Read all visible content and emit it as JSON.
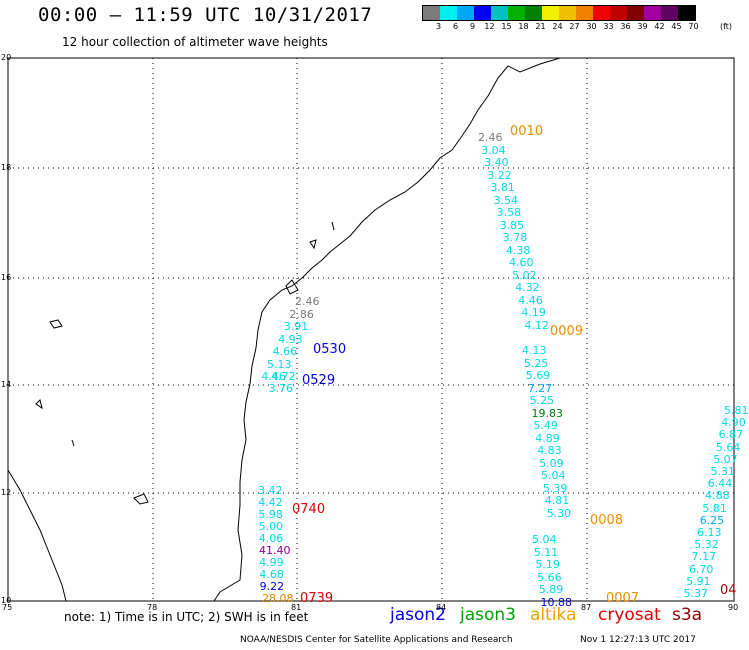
{
  "header": {
    "title": "00:00 – 11:59 UTC 10/31/2017",
    "subtitle": "12 hour collection of altimeter wave heights"
  },
  "color_scale": {
    "labels": [
      "3",
      "6",
      "9",
      "12",
      "15",
      "18",
      "21",
      "24",
      "27",
      "30",
      "33",
      "36",
      "39",
      "42",
      "45",
      "70"
    ],
    "colors": [
      "#7a7a7a",
      "#00f0f0",
      "#00a8f8",
      "#0000f0",
      "#00c0c0",
      "#00b000",
      "#008000",
      "#f0f000",
      "#f0c000",
      "#f08000",
      "#f00000",
      "#c00000",
      "#800000",
      "#a000a0",
      "#600060",
      "#000000"
    ],
    "unit": "(ft)"
  },
  "axes": {
    "x_ticks": [
      "75",
      "78",
      "81",
      "84",
      "87",
      "90"
    ],
    "y_ticks": [
      "20",
      "18",
      "16",
      "14",
      "12",
      "10"
    ]
  },
  "tracks": [
    {
      "id": "altika-0010",
      "label": "0010",
      "label_color": "#f08c00",
      "points": [
        {
          "v": "2.46",
          "c": "#7a7a7a"
        },
        {
          "v": "3.04",
          "c": "#00d8e8"
        },
        {
          "v": "3.40",
          "c": "#00d8e8"
        },
        {
          "v": "3.22",
          "c": "#00d8e8"
        },
        {
          "v": "3.81",
          "c": "#00d8e8"
        },
        {
          "v": "3.54",
          "c": "#00d8e8"
        },
        {
          "v": "3.58",
          "c": "#00d8e8"
        },
        {
          "v": "3.85",
          "c": "#00d8e8"
        },
        {
          "v": "3.78",
          "c": "#00d8e8"
        },
        {
          "v": "4.38",
          "c": "#00d8e8"
        },
        {
          "v": "4.60",
          "c": "#00d8e8"
        },
        {
          "v": "5.02",
          "c": "#00d8e8"
        },
        {
          "v": "4.32",
          "c": "#00d8e8"
        },
        {
          "v": "4.46",
          "c": "#00d8e8"
        },
        {
          "v": "4.19",
          "c": "#00d8e8"
        },
        {
          "v": "4.12",
          "c": "#00d8e8"
        }
      ]
    },
    {
      "id": "altika-0009",
      "label": "0009",
      "label_color": "#f08c00",
      "points": [
        {
          "v": "4.13",
          "c": "#00d8e8"
        },
        {
          "v": "5.25",
          "c": "#00d8e8"
        },
        {
          "v": "5.69",
          "c": "#00d8e8"
        },
        {
          "v": "7.27",
          "c": "#00a8f8"
        },
        {
          "v": "5.25",
          "c": "#00d8e8"
        },
        {
          "v": "19.83",
          "c": "#007800"
        },
        {
          "v": "5.49",
          "c": "#00d8e8"
        },
        {
          "v": "4.89",
          "c": "#00d8e8"
        },
        {
          "v": "4.83",
          "c": "#00d8e8"
        },
        {
          "v": "5.09",
          "c": "#00d8e8"
        },
        {
          "v": "5.04",
          "c": "#00d8e8"
        },
        {
          "v": "5.39",
          "c": "#00d8e8"
        },
        {
          "v": "4.81",
          "c": "#00d8e8"
        },
        {
          "v": "5.30",
          "c": "#00d8e8"
        }
      ]
    },
    {
      "id": "altika-0008",
      "label": "0008",
      "label_color": "#f08c00",
      "points": [
        {
          "v": "5.04",
          "c": "#00d8e8"
        },
        {
          "v": "5.11",
          "c": "#00d8e8"
        },
        {
          "v": "5.19",
          "c": "#00d8e8"
        },
        {
          "v": "5.66",
          "c": "#00d8e8"
        },
        {
          "v": "5.89",
          "c": "#00d8e8"
        },
        {
          "v": "10.88",
          "c": "#0000e0"
        }
      ]
    },
    {
      "id": "altika-0007",
      "label": "0007",
      "label_color": "#f08c00",
      "points": []
    },
    {
      "id": "jason2-0530",
      "label": "0530",
      "label_color": "#0000e0",
      "points": [
        {
          "v": "2.46",
          "c": "#7a7a7a"
        },
        {
          "v": "2.86",
          "c": "#7a7a7a"
        },
        {
          "v": "3.91",
          "c": "#00d8e8"
        },
        {
          "v": "4.93",
          "c": "#00d8e8"
        },
        {
          "v": "4.66",
          "c": "#00d8e8"
        },
        {
          "v": "5.13",
          "c": "#00d8e8"
        },
        {
          "v": "4.46",
          "c": "#00d8e8"
        }
      ]
    },
    {
      "id": "jason2-0529",
      "label": "0529",
      "label_color": "#0000e0",
      "points": [
        {
          "v": "4.72",
          "c": "#00d8e8"
        },
        {
          "v": "3.76",
          "c": "#00d8e8"
        }
      ]
    },
    {
      "id": "cryosat-0740",
      "label": "0740",
      "label_color": "#e00000",
      "points": [
        {
          "v": "3.42",
          "c": "#00d8e8"
        },
        {
          "v": "4.42",
          "c": "#00d8e8"
        },
        {
          "v": "5.98",
          "c": "#00d8e8"
        },
        {
          "v": "5.00",
          "c": "#00d8e8"
        },
        {
          "v": "4.06",
          "c": "#00d8e8"
        },
        {
          "v": "41.40",
          "c": "#900090"
        },
        {
          "v": "4.99",
          "c": "#00d8e8"
        },
        {
          "v": "4.68",
          "c": "#00d8e8"
        },
        {
          "v": "9.22",
          "c": "#0000e0"
        }
      ]
    },
    {
      "id": "cryosat-0739",
      "label": "0739",
      "label_color": "#e00000",
      "points": [
        {
          "v": "28.08",
          "c": "#e08000"
        }
      ]
    },
    {
      "id": "east-track",
      "label": "04",
      "label_color": "#900000",
      "points": [
        {
          "v": "5.81",
          "c": "#00d8e8"
        },
        {
          "v": "4.90",
          "c": "#00d8e8"
        },
        {
          "v": "6.87",
          "c": "#00d8e8"
        },
        {
          "v": "5.64",
          "c": "#00d8e8"
        },
        {
          "v": "5.07",
          "c": "#00d8e8"
        },
        {
          "v": "5.31",
          "c": "#00d8e8"
        },
        {
          "v": "6.44",
          "c": "#00d8e8"
        },
        {
          "v": "4.88",
          "c": "#00d8e8"
        },
        {
          "v": "5.81",
          "c": "#00d8e8"
        },
        {
          "v": "6.25",
          "c": "#00a8f8"
        },
        {
          "v": "6.13",
          "c": "#00d8e8"
        },
        {
          "v": "5.32",
          "c": "#00d8e8"
        },
        {
          "v": "7.17",
          "c": "#00d8e8"
        },
        {
          "v": "6.70",
          "c": "#00d8e8"
        },
        {
          "v": "5.91",
          "c": "#00d8e8"
        },
        {
          "v": "5.37",
          "c": "#00d8e8"
        }
      ]
    }
  ],
  "footer": {
    "note": "note: 1) Time is in UTC; 2) SWH is in feet",
    "legend": [
      {
        "name": "jason2",
        "color": "#0000e0"
      },
      {
        "name": "jason3",
        "color": "#00a000"
      },
      {
        "name": "altika",
        "color": "#f0a000"
      },
      {
        "name": "cryosat",
        "color": "#e00000"
      },
      {
        "name": "s3a",
        "color": "#900000"
      }
    ],
    "credit": "NOAA/NESDIS Center for Satellite Applications and Research",
    "timestamp": "Nov  1 12:27:13 UTC 2017"
  }
}
